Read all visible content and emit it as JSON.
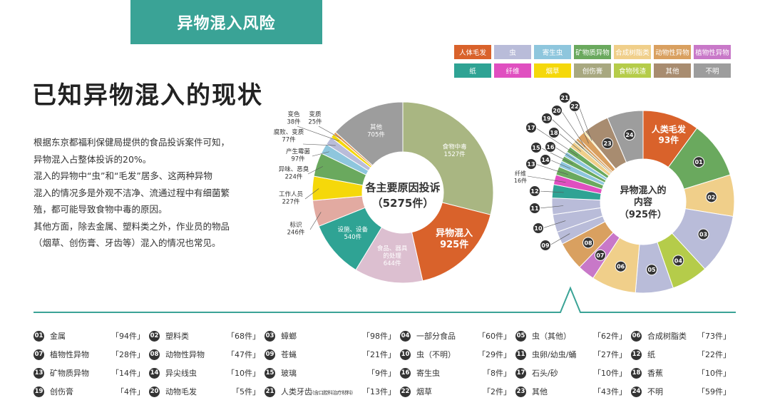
{
  "banner": "异物混入风险",
  "heading": "已知异物混入的现状",
  "intro": [
    "根据东京都福利保健局提供的食品投诉案件可知，",
    "异物混入占整体投诉的20%。",
    "混入的异物中“虫”和“毛发”居多、这两种异物",
    "混入的情况多是外观不洁净、流通过程中有细菌繁",
    "殖，都可能导致食物中毒的原因。",
    "其他方面，除去金属、塑料类之外，作业员的物品",
    "（烟草、创伤膏、牙齿等）混入的情况也常见。"
  ],
  "legend": [
    {
      "label": "人体毛发",
      "color": "#d9622b"
    },
    {
      "label": "虫",
      "color": "#b9bcd9"
    },
    {
      "label": "寄生虫",
      "color": "#8ec6dd"
    },
    {
      "label": "矿物质异物",
      "color": "#6aa95e"
    },
    {
      "label": "合成树脂类",
      "color": "#f0cf8a"
    },
    {
      "label": "动物性异物",
      "color": "#d9a060"
    },
    {
      "label": "植物性异物",
      "color": "#c878c8"
    },
    {
      "label": "纸",
      "color": "#2fa394"
    },
    {
      "label": "纤维",
      "color": "#e04fc0"
    },
    {
      "label": "烟草",
      "color": "#f5d80a"
    },
    {
      "label": "创伤膏",
      "color": "#a8a880"
    },
    {
      "label": "食物残渣",
      "color": "#b5cc4a"
    },
    {
      "label": "其他",
      "color": "#a88c70"
    },
    {
      "label": "不明",
      "color": "#9d9d9d"
    }
  ],
  "chart_data": [
    {
      "type": "pie",
      "title": "各主要原因投诉",
      "subtitle": "（5275件）",
      "total": 5275,
      "slices": [
        {
          "label": "食物中毒",
          "value": 1527,
          "text": "1527件",
          "color": "#a9b682"
        },
        {
          "label": "异物混入",
          "value": 925,
          "text": "925件",
          "color": "#d9622b"
        },
        {
          "label": "食品、器具的处理",
          "value": 644,
          "text": "644件",
          "color": "#dcbfd0"
        },
        {
          "label": "设施、设备",
          "value": 540,
          "text": "540件",
          "color": "#2fa394"
        },
        {
          "label": "标识",
          "value": 246,
          "text": "246件",
          "color": "#e2aaa1"
        },
        {
          "label": "工作人员",
          "value": 227,
          "text": "227件",
          "color": "#f5d80a"
        },
        {
          "label": "异味、恶臭",
          "value": 224,
          "text": "224件",
          "color": "#6aa95e"
        },
        {
          "label": "产生霉菌",
          "value": 97,
          "text": "97件",
          "color": "#8ec6dd"
        },
        {
          "label": "腐败、变质",
          "value": 77,
          "text": "77件",
          "color": "#b9bcd9"
        },
        {
          "label": "变色",
          "value": 38,
          "text": "38件",
          "color": "#f5d80a"
        },
        {
          "label": "变质",
          "value": 25,
          "text": "25件",
          "color": "#e39a52"
        },
        {
          "label": "其他",
          "value": 705,
          "text": "705件",
          "color": "#9d9d9d"
        }
      ]
    },
    {
      "type": "pie",
      "title": "异物混入的内容",
      "subtitle": "（925件）",
      "total": 925,
      "slices": [
        {
          "id": "",
          "label": "人类毛发",
          "value": 93,
          "text": "93件",
          "color": "#d9622b"
        },
        {
          "id": "01",
          "value": 94,
          "color": "#6aa95e"
        },
        {
          "id": "02",
          "value": 68,
          "color": "#f0cf8a"
        },
        {
          "id": "03",
          "value": 98,
          "color": "#b9bcd9"
        },
        {
          "id": "04",
          "value": 60,
          "color": "#b5cc4a"
        },
        {
          "id": "05",
          "value": 62,
          "color": "#b9bcd9"
        },
        {
          "id": "06",
          "value": 73,
          "color": "#f0cf8a"
        },
        {
          "id": "07",
          "value": 28,
          "color": "#c878c8"
        },
        {
          "id": "08",
          "value": 47,
          "color": "#d9a060"
        },
        {
          "id": "09",
          "value": 21,
          "color": "#b9bcd9"
        },
        {
          "id": "10",
          "value": 29,
          "color": "#b9bcd9"
        },
        {
          "id": "11",
          "value": 27,
          "color": "#b9bcd9"
        },
        {
          "id": "12",
          "value": 22,
          "color": "#2fa394"
        },
        {
          "id": "",
          "label": "纤维",
          "value": 16,
          "text": "16件",
          "color": "#e04fc0"
        },
        {
          "id": "13",
          "value": 14,
          "color": "#6aa95e"
        },
        {
          "id": "14",
          "value": 10,
          "color": "#8ec6dd"
        },
        {
          "id": "15",
          "value": 9,
          "color": "#6aa95e"
        },
        {
          "id": "16",
          "value": 8,
          "color": "#8ec6dd"
        },
        {
          "id": "17",
          "value": 10,
          "color": "#6aa95e"
        },
        {
          "id": "18",
          "value": 10,
          "color": "#f0cf8a"
        },
        {
          "id": "19",
          "value": 4,
          "color": "#a8a880"
        },
        {
          "id": "20",
          "value": 5,
          "color": "#d9a060"
        },
        {
          "id": "21",
          "value": 13,
          "color": "#d9a060"
        },
        {
          "id": "22",
          "value": 2,
          "color": "#f5d80a"
        },
        {
          "id": "23",
          "value": 43,
          "color": "#a88c70"
        },
        {
          "id": "24",
          "value": 59,
          "color": "#9d9d9d"
        }
      ]
    }
  ],
  "right_center": [
    "异物混入的",
    "内容",
    "（925件）"
  ],
  "list": [
    {
      "n": "01",
      "name": "金属",
      "count": "「94件」"
    },
    {
      "n": "02",
      "name": "塑料类",
      "count": "「68件」"
    },
    {
      "n": "03",
      "name": "蟑螂",
      "count": "「98件」"
    },
    {
      "n": "04",
      "name": "一部分食品",
      "count": "「60件」"
    },
    {
      "n": "05",
      "name": "虫（其他）",
      "count": "「62件」"
    },
    {
      "n": "06",
      "name": "合成树脂类",
      "count": "「73件」"
    },
    {
      "n": "07",
      "name": "植物性异物",
      "count": "「28件」"
    },
    {
      "n": "08",
      "name": "动物性异物",
      "count": "「47件」"
    },
    {
      "n": "09",
      "name": "苍蝇",
      "count": "「21件」"
    },
    {
      "n": "10",
      "name": "虫（不明）",
      "count": "「29件」"
    },
    {
      "n": "11",
      "name": "虫卵/幼虫/蛹",
      "count": "「27件」"
    },
    {
      "n": "12",
      "name": "纸",
      "count": "「22件」"
    },
    {
      "n": "13",
      "name": "矿物质异物",
      "count": "「14件」"
    },
    {
      "n": "14",
      "name": "异尖线虫",
      "count": "「10件」"
    },
    {
      "n": "15",
      "name": "玻璃",
      "count": "「9件」"
    },
    {
      "n": "16",
      "name": "寄生虫",
      "count": "「8件」"
    },
    {
      "n": "17",
      "name": "石头/砂",
      "count": "「10件」"
    },
    {
      "n": "18",
      "name": "香蕉",
      "count": "「10件」"
    },
    {
      "n": "19",
      "name": "创伤膏",
      "count": "「4件」"
    },
    {
      "n": "20",
      "name": "动物毛发",
      "count": "「5件」"
    },
    {
      "n": "21",
      "name": "人类牙齿",
      "note": "(含口腔科治疗材料)",
      "count": "「13件」"
    },
    {
      "n": "22",
      "name": "烟草",
      "count": "「2件」"
    },
    {
      "n": "23",
      "name": "其他",
      "count": "「43件」"
    },
    {
      "n": "24",
      "name": "不明",
      "count": "「59件」"
    }
  ]
}
